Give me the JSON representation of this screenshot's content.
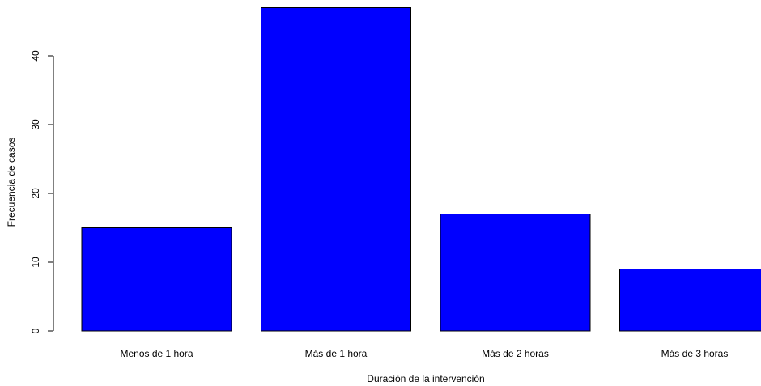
{
  "chart_data": {
    "type": "bar",
    "title": "",
    "xlabel": "Duración de la intervención",
    "ylabel": "Frecuencia de casos",
    "categories": [
      "Menos de 1 hora",
      "Más de 1 hora",
      "Más de 2 horas",
      "Más de 3 horas"
    ],
    "values": [
      15,
      47,
      17,
      9
    ],
    "ylim": [
      0,
      47
    ],
    "yticks": [
      0,
      10,
      20,
      30,
      40
    ],
    "bar_color": "#0000ff",
    "bar_border_color": "#000000",
    "grid": false,
    "legend": "none"
  }
}
